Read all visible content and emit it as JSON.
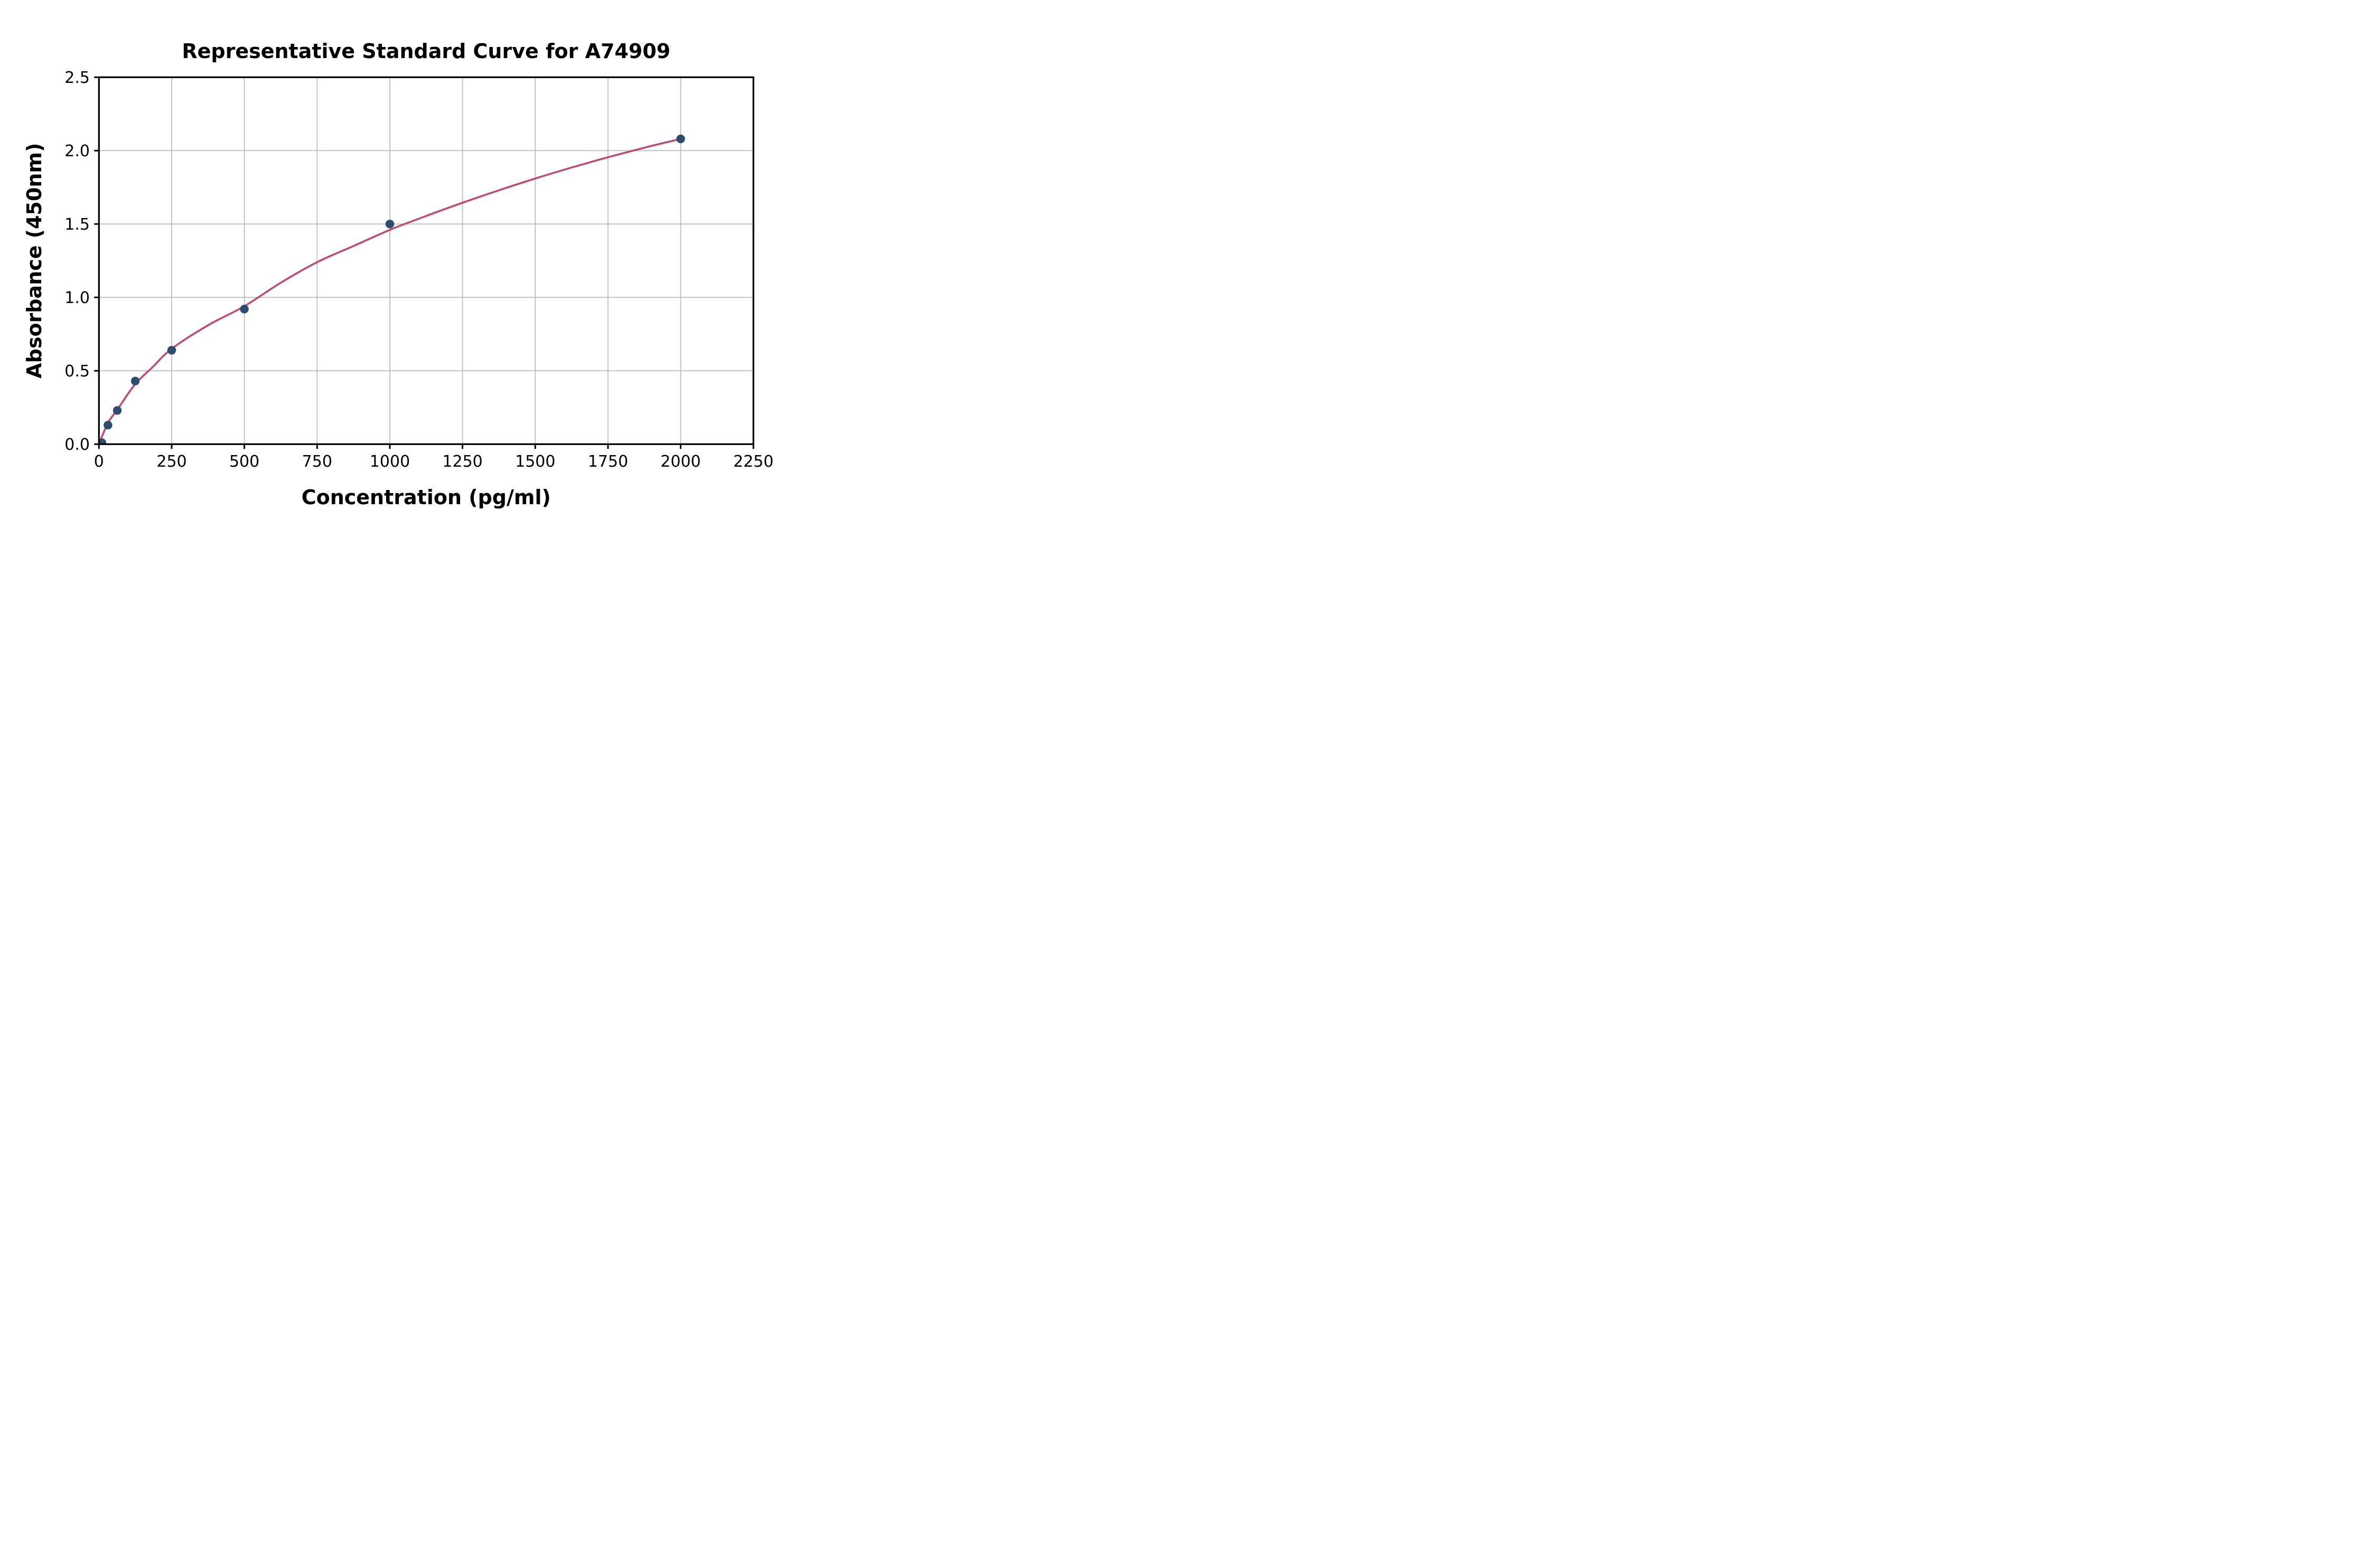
{
  "figure": {
    "background": "#ffffff"
  },
  "chart_data": {
    "type": "scatter",
    "title": "Representative Standard Curve for A74909",
    "xlabel": "Concentration (pg/ml)",
    "ylabel": "Absorbance (450nm)",
    "xlim": [
      0,
      2250
    ],
    "ylim": [
      0,
      2.5
    ],
    "grid": true,
    "legend": null,
    "x_tick_values": [
      0,
      250,
      500,
      750,
      1000,
      1250,
      1500,
      1750,
      2000,
      2250
    ],
    "x_tick_labels": [
      "0",
      "250",
      "500",
      "750",
      "1000",
      "1250",
      "1500",
      "1750",
      "2000",
      "2250"
    ],
    "y_tick_values": [
      0,
      0.5,
      1.0,
      1.5,
      2.0,
      2.5
    ],
    "y_tick_labels": [
      "0.0",
      "0.5",
      "1.0",
      "1.5",
      "2.0",
      "2.5"
    ],
    "series": [
      {
        "name": "standard-points",
        "kind": "scatter",
        "points": [
          [
            10,
            0.01
          ],
          [
            31,
            0.13
          ],
          [
            63,
            0.23
          ],
          [
            125,
            0.43
          ],
          [
            250,
            0.64
          ],
          [
            500,
            0.92
          ],
          [
            1000,
            1.5
          ],
          [
            2000,
            2.08
          ]
        ]
      },
      {
        "name": "fitted-curve",
        "kind": "line",
        "points": [
          [
            0,
            0
          ],
          [
            31,
            0.145
          ],
          [
            63,
            0.235
          ],
          [
            125,
            0.41
          ],
          [
            187,
            0.53
          ],
          [
            250,
            0.65
          ],
          [
            375,
            0.81
          ],
          [
            500,
            0.94
          ],
          [
            625,
            1.1
          ],
          [
            750,
            1.24
          ],
          [
            875,
            1.35
          ],
          [
            1000,
            1.46
          ],
          [
            1125,
            1.555
          ],
          [
            1250,
            1.645
          ],
          [
            1375,
            1.73
          ],
          [
            1500,
            1.81
          ],
          [
            1625,
            1.885
          ],
          [
            1750,
            1.955
          ],
          [
            1875,
            2.02
          ],
          [
            2000,
            2.08
          ]
        ]
      }
    ],
    "colors": {
      "marker": "#2d4d6e",
      "line": "#c24974",
      "grid": "#b6b6b6",
      "spine": "#000000",
      "text": "#000000"
    }
  }
}
